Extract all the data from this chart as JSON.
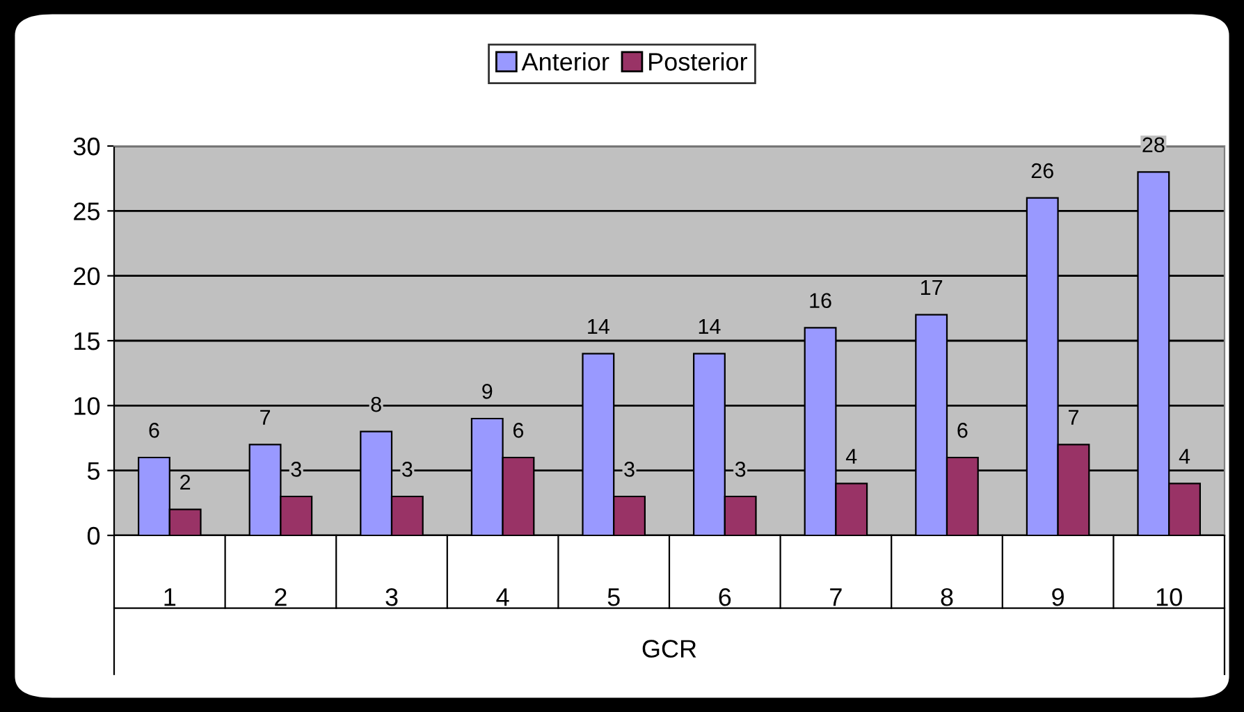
{
  "chart_data": {
    "type": "bar",
    "xlabel": "GCR",
    "categories": [
      "1",
      "2",
      "3",
      "4",
      "5",
      "6",
      "7",
      "8",
      "9",
      "10"
    ],
    "series": [
      {
        "name": "Anterior",
        "color": "#9999ff",
        "values": [
          6,
          7,
          8,
          9,
          14,
          14,
          16,
          17,
          26,
          28
        ]
      },
      {
        "name": "Posterior",
        "color": "#993366",
        "values": [
          2,
          3,
          3,
          6,
          3,
          3,
          4,
          6,
          7,
          4
        ]
      }
    ],
    "ylim": [
      0,
      30
    ],
    "yticks": [
      0,
      5,
      10,
      15,
      20,
      25,
      30
    ],
    "grid": "y",
    "legend": "top",
    "data_labels": true
  }
}
